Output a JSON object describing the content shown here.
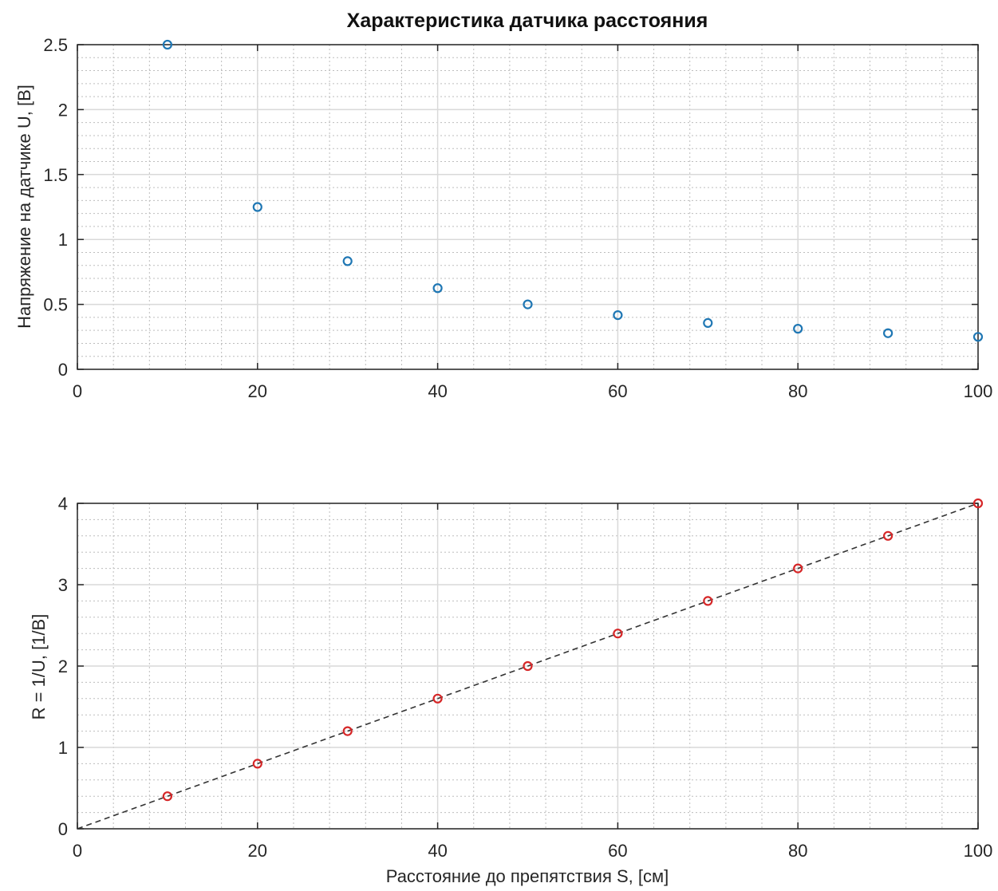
{
  "chart_data": [
    {
      "type": "scatter",
      "title": "Характеристика датчика расстояния",
      "xlabel": "",
      "ylabel": "Напряжение на датчике U, [В]",
      "xlim": [
        0,
        100
      ],
      "ylim": [
        0,
        2.5
      ],
      "xticks": [
        0,
        20,
        40,
        60,
        80,
        100
      ],
      "yticks": [
        0,
        0.5,
        1,
        1.5,
        2,
        2.5
      ],
      "xtick_labels": [
        "0",
        "20",
        "40",
        "60",
        "80",
        "100"
      ],
      "ytick_labels": [
        "0",
        "0.5",
        "1",
        "1.5",
        "2",
        "2.5"
      ],
      "grid": true,
      "minor_grid": true,
      "series": [
        {
          "marker": "circle",
          "color": "#1f77b4",
          "x": [
            10,
            20,
            30,
            40,
            50,
            60,
            70,
            80,
            90,
            100
          ],
          "y": [
            2.5,
            1.25,
            0.833,
            0.625,
            0.5,
            0.417,
            0.357,
            0.3125,
            0.278,
            0.25
          ]
        }
      ]
    },
    {
      "type": "scatter",
      "title": "",
      "xlabel": "Расстояние до препятствия S, [см]",
      "ylabel": "R = 1/U, [1/В]",
      "xlim": [
        0,
        100
      ],
      "ylim": [
        0,
        4
      ],
      "xticks": [
        0,
        20,
        40,
        60,
        80,
        100
      ],
      "yticks": [
        0,
        1,
        2,
        3,
        4
      ],
      "xtick_labels": [
        "0",
        "20",
        "40",
        "60",
        "80",
        "100"
      ],
      "ytick_labels": [
        "0",
        "1",
        "2",
        "3",
        "4"
      ],
      "grid": true,
      "minor_grid": true,
      "series": [
        {
          "marker": "circle",
          "color": "#d62728",
          "x": [
            10,
            20,
            30,
            40,
            50,
            60,
            70,
            80,
            90,
            100
          ],
          "y": [
            0.4,
            0.8,
            1.2,
            1.6,
            2.0,
            2.4,
            2.8,
            3.2,
            3.6,
            4.0
          ]
        },
        {
          "line": "dashed",
          "color": "#333333",
          "x": [
            0,
            100
          ],
          "y": [
            0,
            4
          ]
        }
      ]
    }
  ]
}
